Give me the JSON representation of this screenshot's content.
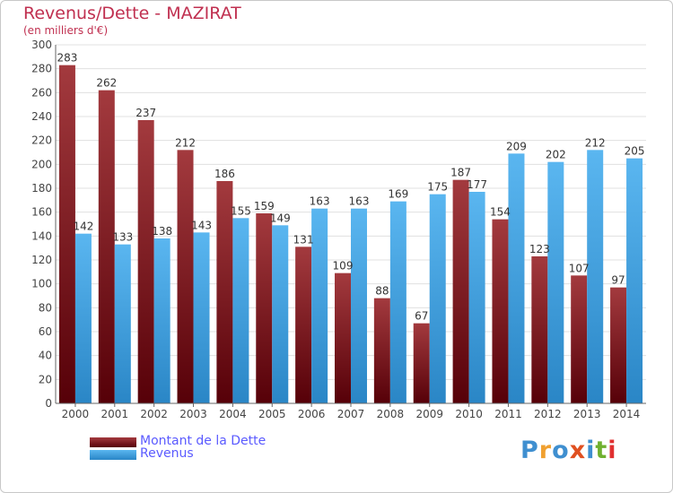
{
  "title": "Revenus/Dette - MAZIRAT",
  "subtitle": "(en milliers d'€)",
  "colors": {
    "debt_light": "#a33a3e",
    "debt_dark": "#560008",
    "revenue_light": "#5ab6f0",
    "revenue_dark": "#2a86c6",
    "title": "#c03050",
    "legend_text": "#5a5aff",
    "grid": "#e0e0e0"
  },
  "logo": {
    "text": "Proxiti",
    "letter_colors": [
      "#3f8fd0",
      "#f0a030",
      "#3f8fd0",
      "#e05020",
      "#3f8fd0",
      "#70b030",
      "#e03030"
    ]
  },
  "chart_data": {
    "type": "bar",
    "title": "Revenus/Dette - MAZIRAT",
    "subtitle": "(en milliers d'€)",
    "categories": [
      "2000",
      "2001",
      "2002",
      "2003",
      "2004",
      "2005",
      "2006",
      "2007",
      "2008",
      "2009",
      "2010",
      "2011",
      "2012",
      "2013",
      "2014"
    ],
    "series": [
      {
        "name": "Montant de la Dette",
        "values": [
          283,
          262,
          237,
          212,
          186,
          159,
          131,
          109,
          88,
          67,
          187,
          154,
          123,
          107,
          97
        ]
      },
      {
        "name": "Revenus",
        "values": [
          142,
          133,
          138,
          143,
          155,
          149,
          163,
          163,
          169,
          175,
          177,
          209,
          202,
          212,
          205
        ]
      }
    ],
    "ylim": [
      0,
      300
    ],
    "yticks": [
      0,
      20,
      40,
      60,
      80,
      100,
      120,
      140,
      160,
      180,
      200,
      220,
      240,
      260,
      280,
      300
    ],
    "grid": "horizontal",
    "legend": "bottom-left"
  }
}
